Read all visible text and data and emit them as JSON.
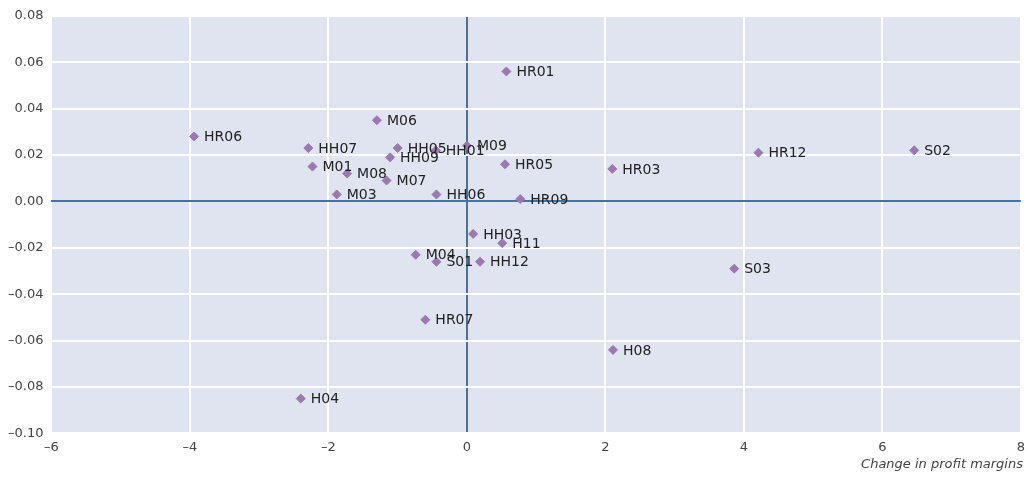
{
  "chart_data": {
    "type": "scatter",
    "xlabel": "Change in profit margins",
    "x": [
      0.57,
      -3.94,
      -1.3,
      -2.29,
      -1.0,
      0.0,
      -0.45,
      -1.11,
      -2.23,
      -1.73,
      -1.16,
      -1.88,
      -0.44,
      0.55,
      2.1,
      4.21,
      6.46,
      0.77,
      0.09,
      0.51,
      -0.74,
      -0.44,
      0.19,
      -0.6,
      2.11,
      3.86,
      -2.4
    ],
    "values": [
      0.056,
      0.028,
      0.035,
      0.023,
      0.023,
      0.024,
      0.022,
      0.019,
      0.015,
      0.012,
      0.009,
      0.003,
      0.003,
      0.016,
      0.014,
      0.021,
      0.022,
      0.001,
      -0.014,
      -0.018,
      -0.023,
      -0.026,
      -0.026,
      -0.051,
      -0.064,
      -0.029,
      -0.085
    ],
    "value_labels": [
      "HR01",
      "HR06",
      "M06",
      "HH07",
      "HH05",
      "M09",
      "HH01",
      "HH09",
      "M01",
      "M08",
      "M07",
      "M03",
      "HH06",
      "HR05",
      "HR03",
      "HR12",
      "S02",
      "HR09",
      "HH03",
      "H11",
      "M04",
      "S01",
      "HH12",
      "HR07",
      "H08",
      "S03",
      "H04"
    ],
    "color": "#9b78b0",
    "marker": "diamond",
    "xlim": [
      -6,
      8
    ],
    "xticks": [
      {
        "value": -6,
        "label": "–6"
      },
      {
        "value": -4,
        "label": "–4"
      },
      {
        "value": -2,
        "label": "–2"
      },
      0,
      2,
      4,
      6,
      8
    ],
    "ylim": [
      -0.1,
      0.08
    ],
    "yticks": [
      {
        "value": -0.1,
        "label": "–0.10"
      },
      {
        "value": -0.08,
        "label": "–0.08"
      },
      {
        "value": -0.06,
        "label": "–0.06"
      },
      {
        "value": -0.04,
        "label": "–0.04"
      },
      {
        "value": -0.02,
        "label": "–0.02"
      },
      {
        "value": 0,
        "label": "0.00"
      },
      {
        "value": 0.02,
        "label": "0.02"
      },
      {
        "value": 0.04,
        "label": "0.04"
      },
      {
        "value": 0.06,
        "label": "0.06"
      },
      {
        "value": 0.08,
        "label": "0.08"
      }
    ],
    "grid": true,
    "legend": false
  }
}
